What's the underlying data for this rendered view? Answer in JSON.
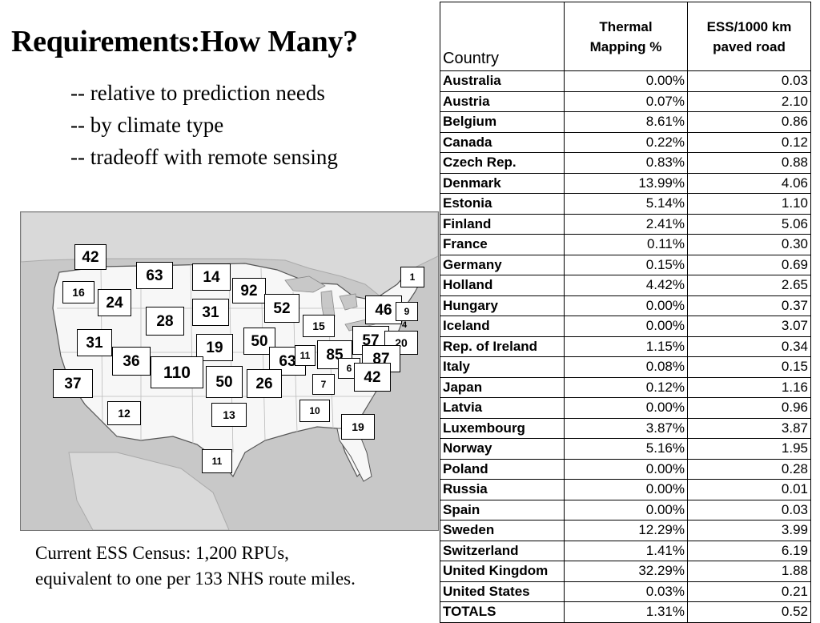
{
  "title": "Requirements:How Many?",
  "bullets": [
    "-- relative to prediction needs",
    "-- by climate type",
    "-- tradeoff with remote sensing"
  ],
  "census": {
    "line1": "Current ESS Census: 1,200 RPUs,",
    "line2": "equivalent to one per 133 NHS route miles."
  },
  "table": {
    "headers": {
      "country": "Country",
      "thermal_line1": "Thermal",
      "thermal_line2": "Mapping %",
      "ess_line1": "ESS/1000 km",
      "ess_line2": "paved road"
    },
    "rows": [
      {
        "country": "Australia",
        "thermal": "0.00%",
        "ess": "0.03"
      },
      {
        "country": "Austria",
        "thermal": "0.07%",
        "ess": "2.10"
      },
      {
        "country": "Belgium",
        "thermal": "8.61%",
        "ess": "0.86"
      },
      {
        "country": "Canada",
        "thermal": "0.22%",
        "ess": "0.12"
      },
      {
        "country": "Czech Rep.",
        "thermal": "0.83%",
        "ess": "0.88"
      },
      {
        "country": "Denmark",
        "thermal": "13.99%",
        "ess": "4.06"
      },
      {
        "country": "Estonia",
        "thermal": "5.14%",
        "ess": "1.10"
      },
      {
        "country": "Finland",
        "thermal": "2.41%",
        "ess": "5.06"
      },
      {
        "country": "France",
        "thermal": "0.11%",
        "ess": "0.30"
      },
      {
        "country": "Germany",
        "thermal": "0.15%",
        "ess": "0.69"
      },
      {
        "country": "Holland",
        "thermal": "4.42%",
        "ess": "2.65"
      },
      {
        "country": "Hungary",
        "thermal": "0.00%",
        "ess": "0.37"
      },
      {
        "country": "Iceland",
        "thermal": "0.00%",
        "ess": "3.07"
      },
      {
        "country": "Rep. of Ireland",
        "thermal": "1.15%",
        "ess": "0.34"
      },
      {
        "country": "Italy",
        "thermal": "0.08%",
        "ess": "0.15"
      },
      {
        "country": "Japan",
        "thermal": "0.12%",
        "ess": "1.16"
      },
      {
        "country": "Latvia",
        "thermal": "0.00%",
        "ess": "0.96"
      },
      {
        "country": "Luxembourg",
        "thermal": "3.87%",
        "ess": "3.87"
      },
      {
        "country": "Norway",
        "thermal": "5.16%",
        "ess": "1.95"
      },
      {
        "country": "Poland",
        "thermal": "0.00%",
        "ess": "0.28"
      },
      {
        "country": "Russia",
        "thermal": "0.00%",
        "ess": "0.01"
      },
      {
        "country": "Spain",
        "thermal": "0.00%",
        "ess": "0.03"
      },
      {
        "country": "Sweden",
        "thermal": "12.29%",
        "ess": "3.99"
      },
      {
        "country": "Switzerland",
        "thermal": "1.41%",
        "ess": "6.19"
      },
      {
        "country": "United Kingdom",
        "thermal": "32.29%",
        "ess": "1.88"
      },
      {
        "country": "United States",
        "thermal": "0.03%",
        "ess": "0.21"
      },
      {
        "country": "TOTALS",
        "thermal": "1.31%",
        "ess": "0.52"
      }
    ]
  },
  "map_labels": [
    "42",
    "63",
    "14",
    "16",
    "24",
    "92",
    "28",
    "31",
    "52",
    "46",
    "9",
    "1",
    "15",
    "4",
    "31",
    "19",
    "50",
    "57",
    "20",
    "36",
    "63",
    "11",
    "85",
    "87",
    "110",
    "50",
    "26",
    "6",
    "42",
    "37",
    "7",
    "12",
    "13",
    "10",
    "19",
    "11"
  ]
}
